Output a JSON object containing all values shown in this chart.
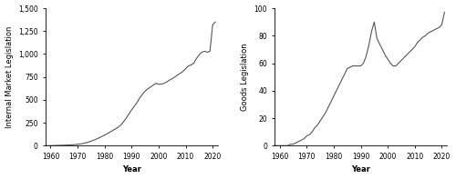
{
  "left_ylabel": "Internal Market Legislation",
  "right_ylabel": "Goods Legislation",
  "xlabel": "Year",
  "left_ylim": [
    0,
    1500
  ],
  "right_ylim": [
    0,
    100
  ],
  "left_yticks": [
    0,
    250,
    500,
    750,
    1000,
    1250,
    1500
  ],
  "right_yticks": [
    0,
    20,
    40,
    60,
    80,
    100
  ],
  "xticks": [
    1960,
    1970,
    1980,
    1990,
    2000,
    2010,
    2020
  ],
  "left_years": [
    1958,
    1959,
    1960,
    1961,
    1962,
    1963,
    1964,
    1965,
    1966,
    1967,
    1968,
    1969,
    1970,
    1971,
    1972,
    1973,
    1974,
    1975,
    1976,
    1977,
    1978,
    1979,
    1980,
    1981,
    1982,
    1983,
    1984,
    1985,
    1986,
    1987,
    1988,
    1989,
    1990,
    1991,
    1992,
    1993,
    1994,
    1995,
    1996,
    1997,
    1998,
    1999,
    2000,
    2001,
    2002,
    2003,
    2004,
    2005,
    2006,
    2007,
    2008,
    2009,
    2010,
    2011,
    2012,
    2013,
    2014,
    2015,
    2016,
    2017,
    2018,
    2019,
    2020,
    2021
  ],
  "left_values": [
    0,
    0,
    0,
    1,
    2,
    3,
    4,
    5,
    6,
    7,
    9,
    11,
    14,
    18,
    22,
    30,
    38,
    48,
    60,
    72,
    85,
    100,
    115,
    130,
    148,
    165,
    182,
    200,
    225,
    260,
    300,
    345,
    390,
    430,
    470,
    520,
    560,
    595,
    620,
    640,
    660,
    680,
    670,
    672,
    680,
    695,
    715,
    730,
    750,
    770,
    790,
    810,
    840,
    870,
    880,
    900,
    950,
    990,
    1020,
    1030,
    1020,
    1030,
    1320,
    1350
  ],
  "right_years": [
    1958,
    1959,
    1960,
    1961,
    1962,
    1963,
    1964,
    1965,
    1966,
    1967,
    1968,
    1969,
    1970,
    1971,
    1972,
    1973,
    1974,
    1975,
    1976,
    1977,
    1978,
    1979,
    1980,
    1981,
    1982,
    1983,
    1984,
    1985,
    1986,
    1987,
    1988,
    1989,
    1990,
    1991,
    1992,
    1993,
    1994,
    1995,
    1996,
    1997,
    1998,
    1999,
    2000,
    2001,
    2002,
    2003,
    2004,
    2005,
    2006,
    2007,
    2008,
    2009,
    2010,
    2011,
    2012,
    2013,
    2014,
    2015,
    2016,
    2017,
    2018,
    2019,
    2020,
    2021
  ],
  "right_values": [
    0,
    0,
    0,
    0,
    0,
    0,
    1,
    1,
    2,
    3,
    4,
    5,
    7,
    8,
    10,
    13,
    15,
    18,
    21,
    24,
    28,
    32,
    36,
    40,
    44,
    48,
    52,
    56,
    57,
    58,
    58,
    58,
    58,
    60,
    65,
    73,
    83,
    90,
    78,
    74,
    70,
    66,
    63,
    60,
    58,
    58,
    60,
    62,
    64,
    66,
    68,
    70,
    72,
    75,
    77,
    79,
    80,
    82,
    83,
    84,
    85,
    86,
    88,
    97
  ],
  "line_color": "#555555",
  "bg_color": "#ffffff",
  "tick_fontsize": 5.5,
  "label_fontsize": 6,
  "linewidth": 0.8
}
